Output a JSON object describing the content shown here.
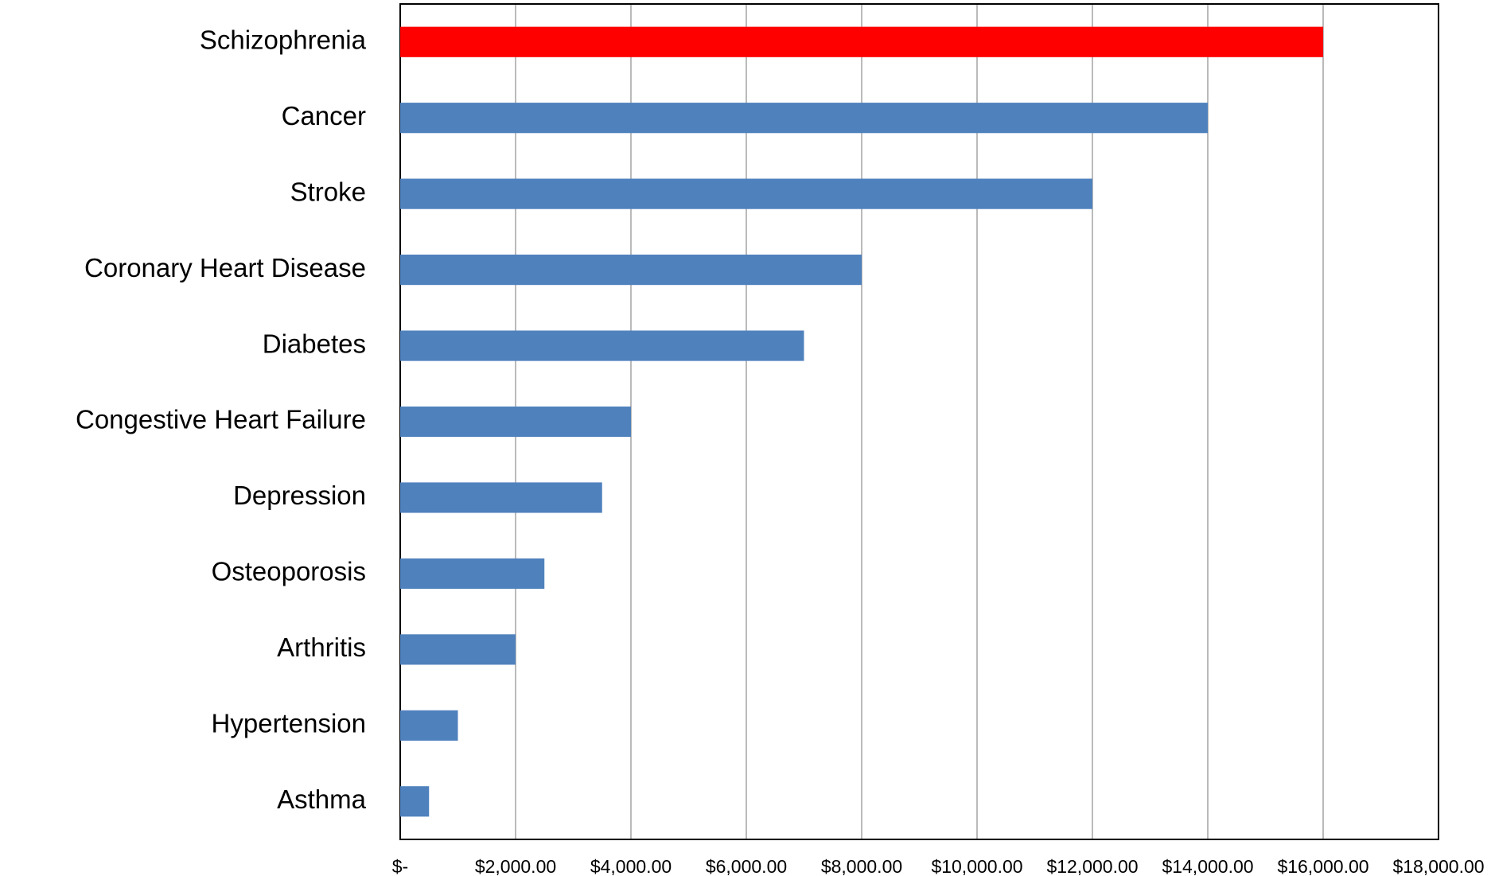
{
  "chart_data": {
    "type": "hbar",
    "categories": [
      "Schizophrenia",
      "Cancer",
      "Stroke",
      "Coronary Heart Disease",
      "Diabetes",
      "Congestive Heart Failure",
      "Depression",
      "Osteoporosis",
      "Arthritis",
      "Hypertension",
      "Asthma"
    ],
    "values": [
      16000,
      14000,
      12000,
      8000,
      7000,
      4000,
      3500,
      2500,
      2000,
      1000,
      500
    ],
    "colors": [
      "#ff0000",
      "#4f81bd",
      "#4f81bd",
      "#4f81bd",
      "#4f81bd",
      "#4f81bd",
      "#4f81bd",
      "#4f81bd",
      "#4f81bd",
      "#4f81bd",
      "#4f81bd"
    ],
    "xlim": [
      0,
      18000
    ],
    "xticks": [
      {
        "value": 0,
        "label": "$-"
      },
      {
        "value": 2000,
        "label": "$2,000.00"
      },
      {
        "value": 4000,
        "label": "$4,000.00"
      },
      {
        "value": 6000,
        "label": "$6,000.00"
      },
      {
        "value": 8000,
        "label": "$8,000.00"
      },
      {
        "value": 10000,
        "label": "$10,000.00"
      },
      {
        "value": 12000,
        "label": "$12,000.00"
      },
      {
        "value": 14000,
        "label": "$14,000.00"
      },
      {
        "value": 16000,
        "label": "$16,000.00"
      },
      {
        "value": 18000,
        "label": "$18,000.00"
      }
    ],
    "grid": true
  }
}
